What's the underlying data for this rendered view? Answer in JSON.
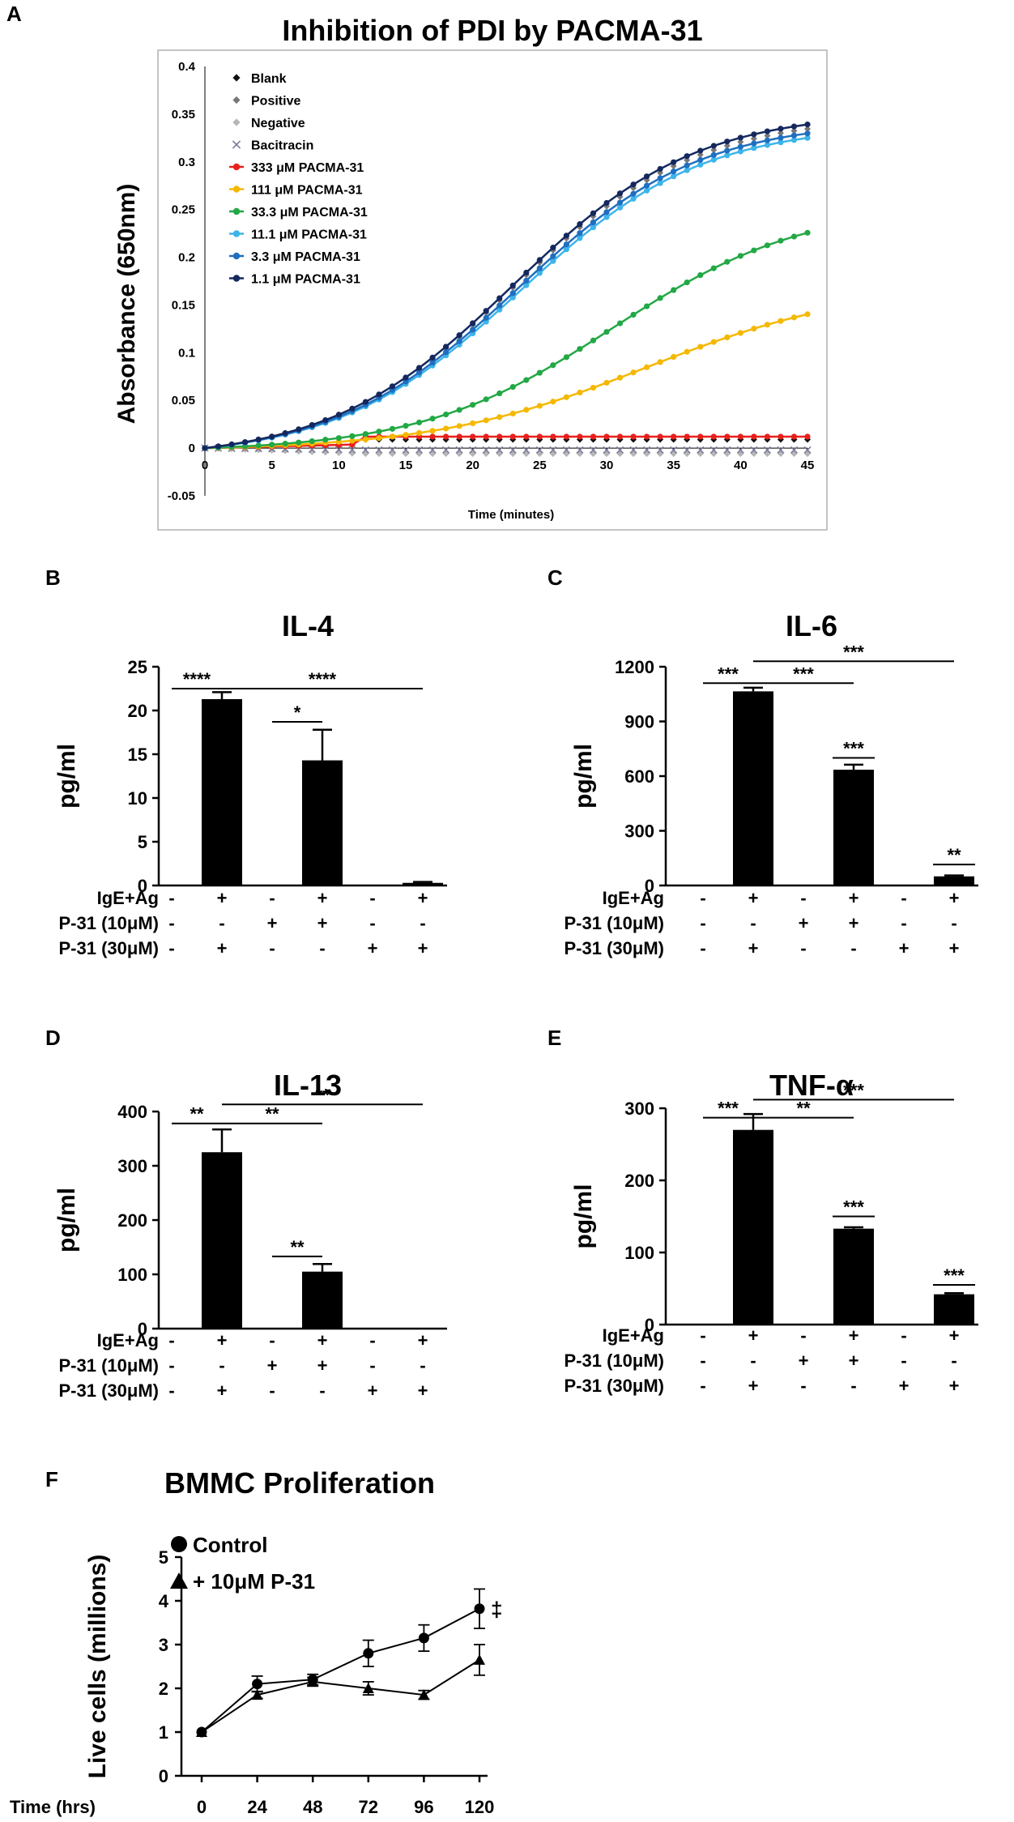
{
  "chart_data": [
    {
      "panel": "A",
      "type": "line",
      "title": "Inhibition of PDI by PACMA-31",
      "xlabel": "Time (minutes)",
      "ylabel": "Absorbance (650nm)",
      "xlim": [
        0,
        45
      ],
      "ylim": [
        -0.05,
        0.4
      ],
      "xticks": [
        "0",
        "5",
        "10",
        "15",
        "20",
        "25",
        "30",
        "35",
        "40",
        "45"
      ],
      "yticks": [
        "-0.05",
        "0",
        "0.05",
        "0.1",
        "0.15",
        "0.2",
        "0.25",
        "0.3",
        "0.35",
        "0.4"
      ],
      "series": [
        {
          "name": "Blank",
          "color": "#111111",
          "marker": "diamond",
          "line": false,
          "base": 0,
          "k": 0.009,
          "t0": 0,
          "flat": true
        },
        {
          "name": "Positive",
          "color": "#777777",
          "marker": "diamond",
          "line": false,
          "base": 0,
          "k": 0.36,
          "t0": 23.0,
          "s": 6.8
        },
        {
          "name": "Negative",
          "color": "#b5b5b5",
          "marker": "diamond",
          "line": false,
          "base": 0,
          "k": -0.006,
          "t0": 0,
          "flat": true
        },
        {
          "name": "Bacitracin",
          "color": "#7a7a9a",
          "marker": "x",
          "line": false,
          "base": 0,
          "k": -0.002,
          "t0": 0,
          "flat": true
        },
        {
          "name": "333 μM PACMA-31",
          "color": "#e8201c",
          "marker": "circle",
          "line": true,
          "base": 0,
          "k": 0.012,
          "t0": 0,
          "flat": true
        },
        {
          "name": "111 μM PACMA-31",
          "color": "#f5b800",
          "marker": "circle",
          "line": true,
          "base": 0,
          "k": 0.175,
          "t0": 33.0,
          "s": 8.0
        },
        {
          "name": "33.3 μM PACMA-31",
          "color": "#22a845",
          "marker": "circle",
          "line": true,
          "base": 0,
          "k": 0.26,
          "t0": 30.5,
          "s": 7.2
        },
        {
          "name": "11.1 μM PACMA-31",
          "color": "#3db4ea",
          "marker": "circle",
          "line": true,
          "base": 0,
          "k": 0.35,
          "t0": 23.5,
          "s": 6.8
        },
        {
          "name": "3.3 μM PACMA-31",
          "color": "#1f6fc0",
          "marker": "circle",
          "line": true,
          "base": 0,
          "k": 0.355,
          "t0": 23.3,
          "s": 6.8
        },
        {
          "name": "1.1 μM PACMA-31",
          "color": "#14285e",
          "marker": "circle",
          "line": true,
          "base": 0,
          "k": 0.365,
          "t0": 23.0,
          "s": 6.8
        }
      ]
    },
    {
      "panel": "B",
      "type": "bar",
      "title": "IL-4",
      "ylabel": "pg/ml",
      "ylim": [
        0,
        25
      ],
      "yticks": [
        "0",
        "5",
        "10",
        "15",
        "20",
        "25"
      ],
      "values": [
        0,
        21.3,
        0,
        14.3,
        0,
        0.3
      ],
      "errors": [
        0,
        0.8,
        0,
        3.5,
        0,
        0.1
      ],
      "brackets": [
        {
          "from": 0,
          "to": 1,
          "y": 22.5,
          "label": "****"
        },
        {
          "from": 1,
          "to": 5,
          "y": 22.5,
          "label": "****"
        },
        {
          "from": 2,
          "to": 3,
          "y": 18.7,
          "label": "*"
        }
      ]
    },
    {
      "panel": "C",
      "type": "bar",
      "title": "IL-6",
      "ylabel": "pg/ml",
      "ylim": [
        0,
        1200
      ],
      "yticks": [
        "0",
        "300",
        "600",
        "900",
        "1200"
      ],
      "values": [
        0,
        1065,
        0,
        635,
        0,
        50
      ],
      "errors": [
        0,
        20,
        0,
        28,
        0,
        5
      ],
      "brackets": [
        {
          "from": 0,
          "to": 1,
          "y": 1110,
          "label": "***"
        },
        {
          "from": 1,
          "to": 5,
          "y": 1230,
          "label": "***"
        },
        {
          "from": 1,
          "to": 3,
          "y": 1110,
          "label": "***"
        },
        {
          "from": 3,
          "to": 3.6,
          "y": 700,
          "label": "***",
          "short": true
        },
        {
          "from": 5,
          "to": 5.6,
          "y": 115,
          "label": "**",
          "short": true
        }
      ]
    },
    {
      "panel": "D",
      "type": "bar",
      "title": "IL-13",
      "ylabel": "pg/ml",
      "ylim": [
        0,
        400
      ],
      "yticks": [
        "0",
        "100",
        "200",
        "300",
        "400"
      ],
      "values": [
        0,
        325,
        0,
        105,
        0,
        0
      ],
      "errors": [
        0,
        42,
        0,
        14,
        0,
        0
      ],
      "brackets": [
        {
          "from": 0,
          "to": 1,
          "y": 378,
          "label": "**"
        },
        {
          "from": 1,
          "to": 3,
          "y": 378,
          "label": "**"
        },
        {
          "from": 1,
          "to": 5,
          "y": 413,
          "label": "**"
        },
        {
          "from": 2,
          "to": 3,
          "y": 133,
          "label": "**"
        }
      ]
    },
    {
      "panel": "E",
      "type": "bar",
      "title": "TNF-α",
      "ylabel": "pg/ml",
      "ylim": [
        0,
        300
      ],
      "yticks": [
        "0",
        "100",
        "200",
        "300"
      ],
      "values": [
        0,
        270,
        0,
        133,
        0,
        42
      ],
      "errors": [
        0,
        22,
        0,
        2,
        0,
        1.5
      ],
      "brackets": [
        {
          "from": 0,
          "to": 1,
          "y": 287,
          "label": "***"
        },
        {
          "from": 1,
          "to": 3,
          "y": 287,
          "label": "**"
        },
        {
          "from": 1,
          "to": 5,
          "y": 312,
          "label": "***"
        },
        {
          "from": 3,
          "to": 3.6,
          "y": 150,
          "label": "***",
          "short": true
        },
        {
          "from": 5,
          "to": 5.6,
          "y": 55,
          "label": "***",
          "short": true
        }
      ]
    },
    {
      "panel": "F",
      "type": "line",
      "title": "BMMC Proliferation",
      "xlabel": "Time (hrs)",
      "ylabel": "Live cells (millions)",
      "x": [
        0,
        24,
        48,
        72,
        96,
        120
      ],
      "ylim": [
        0,
        5
      ],
      "yticks": [
        "0",
        "1",
        "2",
        "3",
        "4",
        "5"
      ],
      "series": [
        {
          "name": "Control",
          "marker": "circle",
          "values": [
            1.0,
            2.1,
            2.2,
            2.8,
            3.15,
            3.82
          ],
          "errors": [
            0,
            0.18,
            0.12,
            0.3,
            0.3,
            0.45
          ]
        },
        {
          "name": "+ 10μM P-31",
          "marker": "triangle",
          "values": [
            1.0,
            1.85,
            2.15,
            2.0,
            1.85,
            2.65
          ],
          "errors": [
            0,
            0.08,
            0.1,
            0.15,
            0.1,
            0.35
          ]
        }
      ],
      "annotation": "‡"
    }
  ],
  "conditions": {
    "labels": [
      "IgE+Ag",
      "P-31 (10μM)",
      "P-31 (30μM)"
    ],
    "rows": [
      [
        "-",
        "+",
        "-",
        "+",
        "-",
        "+"
      ],
      [
        "-",
        "-",
        "+",
        "+",
        "-",
        "-"
      ],
      [
        "-",
        "+",
        "-",
        "-",
        "+",
        "+"
      ]
    ]
  }
}
